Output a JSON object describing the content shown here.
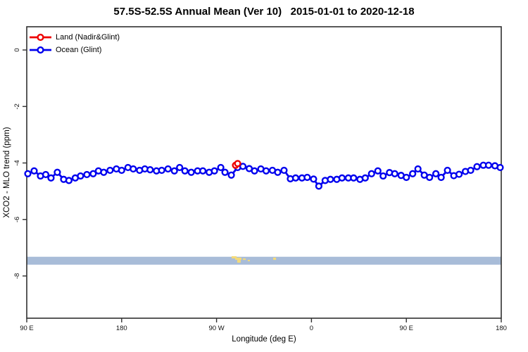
{
  "header": {
    "title": "57.5S-52.5S Annual Mean (Ver 10)   2015-01-01 to 2020-12-18"
  },
  "legend": {
    "items": [
      {
        "label": "Land (Nadir&Glint)",
        "color": "#EE0000"
      },
      {
        "label": "Ocean (Glint)",
        "color": "#0000EE"
      }
    ]
  },
  "chart_data": {
    "type": "scatter",
    "title": "57.5S-52.5S Annual Mean (Ver 10)   2015-01-01 to 2020-12-18",
    "xlabel": "Longitude (deg E)",
    "ylabel": "XCO2 - MLO trend (ppm)",
    "legend_position": "top-left-inside",
    "grid": false,
    "axis_color": "#303030",
    "x_axis": {
      "range_deg_continuous": [
        90,
        540
      ],
      "ticks": [
        {
          "lon": 90,
          "label": "90 E"
        },
        {
          "lon": 180,
          "label": "180"
        },
        {
          "lon": 270,
          "label": "90 W"
        },
        {
          "lon": 360,
          "label": "0"
        },
        {
          "lon": 450,
          "label": "90 E"
        },
        {
          "lon": 540,
          "label": "180"
        }
      ]
    },
    "y_axis": {
      "range": [
        0.8,
        -9.5
      ],
      "ticks": [
        {
          "v": 0,
          "label": "0"
        },
        {
          "v": -2,
          "label": "-2"
        },
        {
          "v": -4,
          "label": "-4"
        },
        {
          "v": -6,
          "label": "-6"
        },
        {
          "v": -8,
          "label": "-8"
        }
      ]
    },
    "series": [
      {
        "name": "Land (Nadir&Glint)",
        "color": "#EE0000",
        "marker": "open-circle",
        "points": [
          [
            288,
            -4.08
          ],
          [
            290,
            -4.02
          ]
        ]
      },
      {
        "name": "Ocean (Glint)",
        "color": "#0000EE",
        "marker": "open-circle",
        "points": [
          [
            91,
            -4.38
          ],
          [
            97,
            -4.28
          ],
          [
            103,
            -4.46
          ],
          [
            108,
            -4.41
          ],
          [
            113,
            -4.53
          ],
          [
            119,
            -4.33
          ],
          [
            125,
            -4.58
          ],
          [
            130,
            -4.62
          ],
          [
            136,
            -4.53
          ],
          [
            141,
            -4.46
          ],
          [
            147,
            -4.41
          ],
          [
            153,
            -4.38
          ],
          [
            158,
            -4.28
          ],
          [
            163,
            -4.33
          ],
          [
            169,
            -4.26
          ],
          [
            175,
            -4.21
          ],
          [
            180,
            -4.26
          ],
          [
            186,
            -4.16
          ],
          [
            191,
            -4.21
          ],
          [
            197,
            -4.26
          ],
          [
            202,
            -4.21
          ],
          [
            207,
            -4.24
          ],
          [
            213,
            -4.28
          ],
          [
            218,
            -4.26
          ],
          [
            224,
            -4.21
          ],
          [
            230,
            -4.28
          ],
          [
            235,
            -4.16
          ],
          [
            240,
            -4.28
          ],
          [
            246,
            -4.33
          ],
          [
            252,
            -4.28
          ],
          [
            257,
            -4.28
          ],
          [
            263,
            -4.33
          ],
          [
            268,
            -4.28
          ],
          [
            274,
            -4.16
          ],
          [
            278,
            -4.33
          ],
          [
            284,
            -4.43
          ],
          [
            290,
            -4.16
          ],
          [
            295,
            -4.12
          ],
          [
            301,
            -4.2
          ],
          [
            306,
            -4.28
          ],
          [
            312,
            -4.21
          ],
          [
            317,
            -4.28
          ],
          [
            323,
            -4.26
          ],
          [
            328,
            -4.33
          ],
          [
            334,
            -4.26
          ],
          [
            340,
            -4.56
          ],
          [
            345,
            -4.53
          ],
          [
            351,
            -4.53
          ],
          [
            356,
            -4.51
          ],
          [
            362,
            -4.57
          ],
          [
            367,
            -4.82
          ],
          [
            373,
            -4.62
          ],
          [
            378,
            -4.58
          ],
          [
            384,
            -4.58
          ],
          [
            389,
            -4.53
          ],
          [
            395,
            -4.53
          ],
          [
            400,
            -4.53
          ],
          [
            406,
            -4.58
          ],
          [
            411,
            -4.53
          ],
          [
            417,
            -4.38
          ],
          [
            423,
            -4.28
          ],
          [
            428,
            -4.46
          ],
          [
            434,
            -4.34
          ],
          [
            439,
            -4.38
          ],
          [
            445,
            -4.44
          ],
          [
            450,
            -4.51
          ],
          [
            456,
            -4.38
          ],
          [
            461,
            -4.21
          ],
          [
            467,
            -4.43
          ],
          [
            472,
            -4.51
          ],
          [
            478,
            -4.38
          ],
          [
            483,
            -4.51
          ],
          [
            489,
            -4.26
          ],
          [
            495,
            -4.45
          ],
          [
            500,
            -4.4
          ],
          [
            506,
            -4.3
          ],
          [
            511,
            -4.26
          ],
          [
            517,
            -4.13
          ],
          [
            523,
            -4.08
          ],
          [
            528,
            -4.08
          ],
          [
            534,
            -4.1
          ],
          [
            539,
            -4.16
          ]
        ]
      }
    ],
    "latitude_band_map": {
      "description": "57.5S-52.5S latitude strip map overlay",
      "ocean_color": "#A8BCD8",
      "land_color": "#F4DA78",
      "v_top": -7.32,
      "v_bottom": -7.6,
      "land_blobs": [
        {
          "lon": 284.3,
          "dlon": 4.7,
          "v": -7.3,
          "dv": 0.08
        },
        {
          "lon": 287.6,
          "dlon": 6.0,
          "v": -7.35,
          "dv": 0.08
        },
        {
          "lon": 289.6,
          "dlon": 3.3,
          "v": -7.43,
          "dv": 0.1
        },
        {
          "lon": 295.0,
          "dlon": 2.7,
          "v": -7.38,
          "dv": 0.05
        },
        {
          "lon": 299.6,
          "dlon": 2.0,
          "v": -7.43,
          "dv": 0.05
        },
        {
          "lon": 323.7,
          "dlon": 2.7,
          "v": -7.35,
          "dv": 0.08
        }
      ]
    }
  }
}
